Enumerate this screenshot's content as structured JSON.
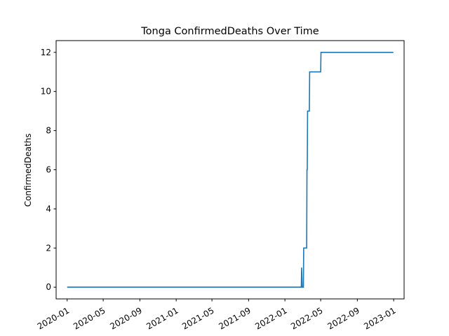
{
  "chart_data": {
    "type": "line",
    "title": "Tonga  ConfirmedDeaths Over Time",
    "xlabel": "",
    "ylabel": "ConfirmedDeaths",
    "x_axis_type": "date",
    "xlim": [
      "2019-11-25",
      "2023-02-05"
    ],
    "ylim": [
      -0.6,
      12.6
    ],
    "xticks": [
      "2020-01",
      "2020-05",
      "2020-09",
      "2021-01",
      "2021-05",
      "2021-09",
      "2022-01",
      "2022-05",
      "2022-09",
      "2023-01"
    ],
    "yticks": [
      0,
      2,
      4,
      6,
      8,
      10,
      12
    ],
    "grid": false,
    "legend": "none",
    "series": [
      {
        "color": "#1f77b4",
        "points": [
          [
            "2020-01-01",
            0
          ],
          [
            "2022-02-25",
            0
          ],
          [
            "2022-02-26",
            1
          ],
          [
            "2022-02-28",
            0
          ],
          [
            "2022-03-04",
            0
          ],
          [
            "2022-03-05",
            2
          ],
          [
            "2022-03-15",
            2
          ],
          [
            "2022-03-16",
            6
          ],
          [
            "2022-03-17",
            6
          ],
          [
            "2022-03-18",
            9
          ],
          [
            "2022-03-24",
            9
          ],
          [
            "2022-03-25",
            11
          ],
          [
            "2022-05-01",
            11
          ],
          [
            "2022-05-02",
            12
          ],
          [
            "2022-12-31",
            12
          ]
        ]
      }
    ]
  }
}
